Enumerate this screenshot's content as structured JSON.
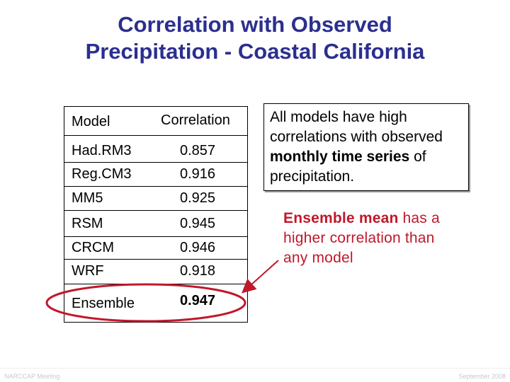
{
  "slide": {
    "title_line1": "Correlation with Observed",
    "title_line2": "Precipitation - Coastal California"
  },
  "table": {
    "header": {
      "model": "Model",
      "correlation": "Correlation"
    },
    "rows": [
      {
        "model": "Had.RM3",
        "correlation": "0.857"
      },
      {
        "model": "Reg.CM3",
        "correlation": "0.916"
      },
      {
        "model": "MM5",
        "correlation": "0.925"
      },
      {
        "model": "RSM",
        "correlation": "0.945"
      },
      {
        "model": "CRCM",
        "correlation": "0.946"
      },
      {
        "model": "WRF",
        "correlation": "0.918"
      }
    ],
    "ensemble": {
      "model": "Ensemble",
      "correlation": "0.947"
    }
  },
  "callout": {
    "part1": "All models have high correlations with observed ",
    "bold": "monthly time series",
    "part2": " of precipitation."
  },
  "ensemble_note": {
    "bold": "Ensemble mean",
    "rest": " has a higher correlation than any model"
  },
  "footer": {
    "left": "NARCCAP Meeting",
    "right": "September 2008"
  },
  "colors": {
    "title": "#2b2f8f",
    "highlight": "#c0182b"
  }
}
